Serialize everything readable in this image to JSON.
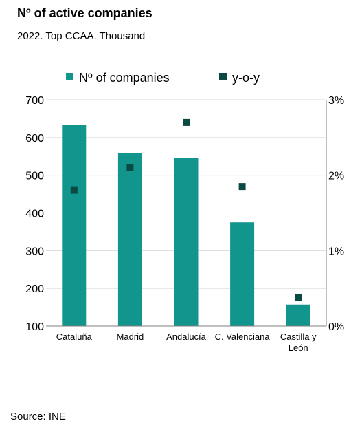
{
  "title": "Nº of active companies",
  "subtitle": "2022. Top CCAA. Thousand",
  "source": "Source: INE",
  "colors": {
    "bar": "#12958c",
    "marker": "#0b4a43",
    "grid": "#d9d9d9",
    "axis": "#7f7f7f"
  },
  "chart_data": {
    "type": "bar",
    "categories": [
      [
        "Cataluña"
      ],
      [
        "Madrid"
      ],
      [
        "Andalucía"
      ],
      [
        "C. Valenciana"
      ],
      [
        "Castilla y",
        "León"
      ]
    ],
    "series": [
      {
        "name": "Nº of companies",
        "type": "bar",
        "axis": "left",
        "values": [
          634,
          559,
          546,
          375,
          157
        ]
      },
      {
        "name": "y-o-y",
        "type": "scatter",
        "axis": "right",
        "values": [
          1.8,
          2.1,
          2.7,
          1.85,
          0.38
        ]
      }
    ],
    "ylim": [
      100,
      700
    ],
    "yticks": [
      "100",
      "200",
      "300",
      "400",
      "500",
      "600",
      "700"
    ],
    "y2lim": [
      0,
      3
    ],
    "y2ticks": [
      "0%",
      "1%",
      "2%",
      "3%"
    ],
    "grid": true,
    "legend_position": "top"
  }
}
